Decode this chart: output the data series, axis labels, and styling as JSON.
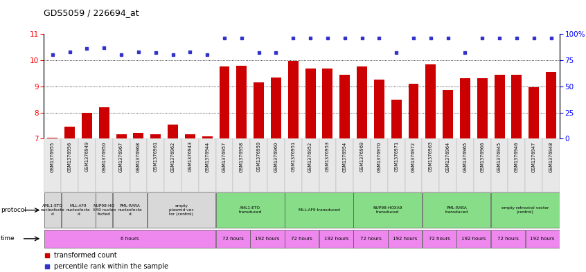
{
  "title": "GDS5059 / 226694_at",
  "sample_ids": [
    "GSM1376955",
    "GSM1376956",
    "GSM1376949",
    "GSM1376950",
    "GSM1376967",
    "GSM1376968",
    "GSM1376961",
    "GSM1376962",
    "GSM1376943",
    "GSM1376944",
    "GSM1376957",
    "GSM1376958",
    "GSM1376959",
    "GSM1376960",
    "GSM1376951",
    "GSM1376952",
    "GSM1376953",
    "GSM1376954",
    "GSM1376969",
    "GSM1376970",
    "GSM1376971",
    "GSM1376972",
    "GSM1376963",
    "GSM1376964",
    "GSM1376965",
    "GSM1376966",
    "GSM1376945",
    "GSM1376946",
    "GSM1376947",
    "GSM1376948"
  ],
  "bar_values": [
    7.05,
    7.45,
    8.0,
    8.2,
    7.18,
    7.22,
    7.18,
    7.55,
    7.18,
    7.1,
    9.75,
    9.8,
    9.15,
    9.35,
    9.98,
    9.68,
    9.68,
    9.45,
    9.75,
    9.25,
    8.5,
    9.1,
    9.85,
    8.85,
    9.3,
    9.3,
    9.45,
    9.45,
    8.98,
    9.55
  ],
  "dot_values": [
    10.2,
    10.32,
    10.45,
    10.47,
    10.21,
    10.31,
    10.3,
    10.21,
    10.31,
    10.21,
    10.85,
    10.85,
    10.3,
    10.3,
    10.85,
    10.85,
    10.85,
    10.85,
    10.85,
    10.85,
    10.3,
    10.85,
    10.85,
    10.85,
    10.3,
    10.85,
    10.85,
    10.85,
    10.85,
    10.85
  ],
  "ylim": [
    7,
    11
  ],
  "yticks_left": [
    7,
    8,
    9,
    10,
    11
  ],
  "yticks_right": [
    0,
    25,
    50,
    75,
    100
  ],
  "bar_color": "#cc0000",
  "dot_color": "#3333cc",
  "protocol_row": [
    {
      "label": "AML1-ETO\nnucleofecte\nd",
      "start": 0,
      "end": 1,
      "color": "#d8d8d8"
    },
    {
      "label": "MLL-AF9\nnucleofecte\nd",
      "start": 1,
      "end": 3,
      "color": "#d8d8d8"
    },
    {
      "label": "NUP98-HO\nXA9 nucleo\nfected",
      "start": 3,
      "end": 4,
      "color": "#d8d8d8"
    },
    {
      "label": "PML-RARA\nnucleofecte\nd",
      "start": 4,
      "end": 6,
      "color": "#d8d8d8"
    },
    {
      "label": "empty\nplasmid vec\ntor (control)",
      "start": 6,
      "end": 10,
      "color": "#d8d8d8"
    },
    {
      "label": "AML1-ETO\ntransduced",
      "start": 10,
      "end": 14,
      "color": "#88dd88"
    },
    {
      "label": "MLL-AF9 transduced",
      "start": 14,
      "end": 18,
      "color": "#88dd88"
    },
    {
      "label": "NUP98-HOXA9\ntransduced",
      "start": 18,
      "end": 22,
      "color": "#88dd88"
    },
    {
      "label": "PML-RARA\ntransduced",
      "start": 22,
      "end": 26,
      "color": "#88dd88"
    },
    {
      "label": "empty retroviral vector\n(control)",
      "start": 26,
      "end": 30,
      "color": "#88dd88"
    }
  ],
  "time_row": [
    {
      "label": "6 hours",
      "start": 0,
      "end": 10,
      "color": "#ee88ee"
    },
    {
      "label": "72 hours",
      "start": 10,
      "end": 12,
      "color": "#ee88ee"
    },
    {
      "label": "192 hours",
      "start": 12,
      "end": 14,
      "color": "#ee88ee"
    },
    {
      "label": "72 hours",
      "start": 14,
      "end": 16,
      "color": "#ee88ee"
    },
    {
      "label": "192 hours",
      "start": 16,
      "end": 18,
      "color": "#ee88ee"
    },
    {
      "label": "72 hours",
      "start": 18,
      "end": 20,
      "color": "#ee88ee"
    },
    {
      "label": "192 hours",
      "start": 20,
      "end": 22,
      "color": "#ee88ee"
    },
    {
      "label": "72 hours",
      "start": 22,
      "end": 24,
      "color": "#ee88ee"
    },
    {
      "label": "192 hours",
      "start": 24,
      "end": 26,
      "color": "#ee88ee"
    },
    {
      "label": "72 hours",
      "start": 26,
      "end": 28,
      "color": "#ee88ee"
    },
    {
      "label": "192 hours",
      "start": 28,
      "end": 30,
      "color": "#ee88ee"
    }
  ]
}
